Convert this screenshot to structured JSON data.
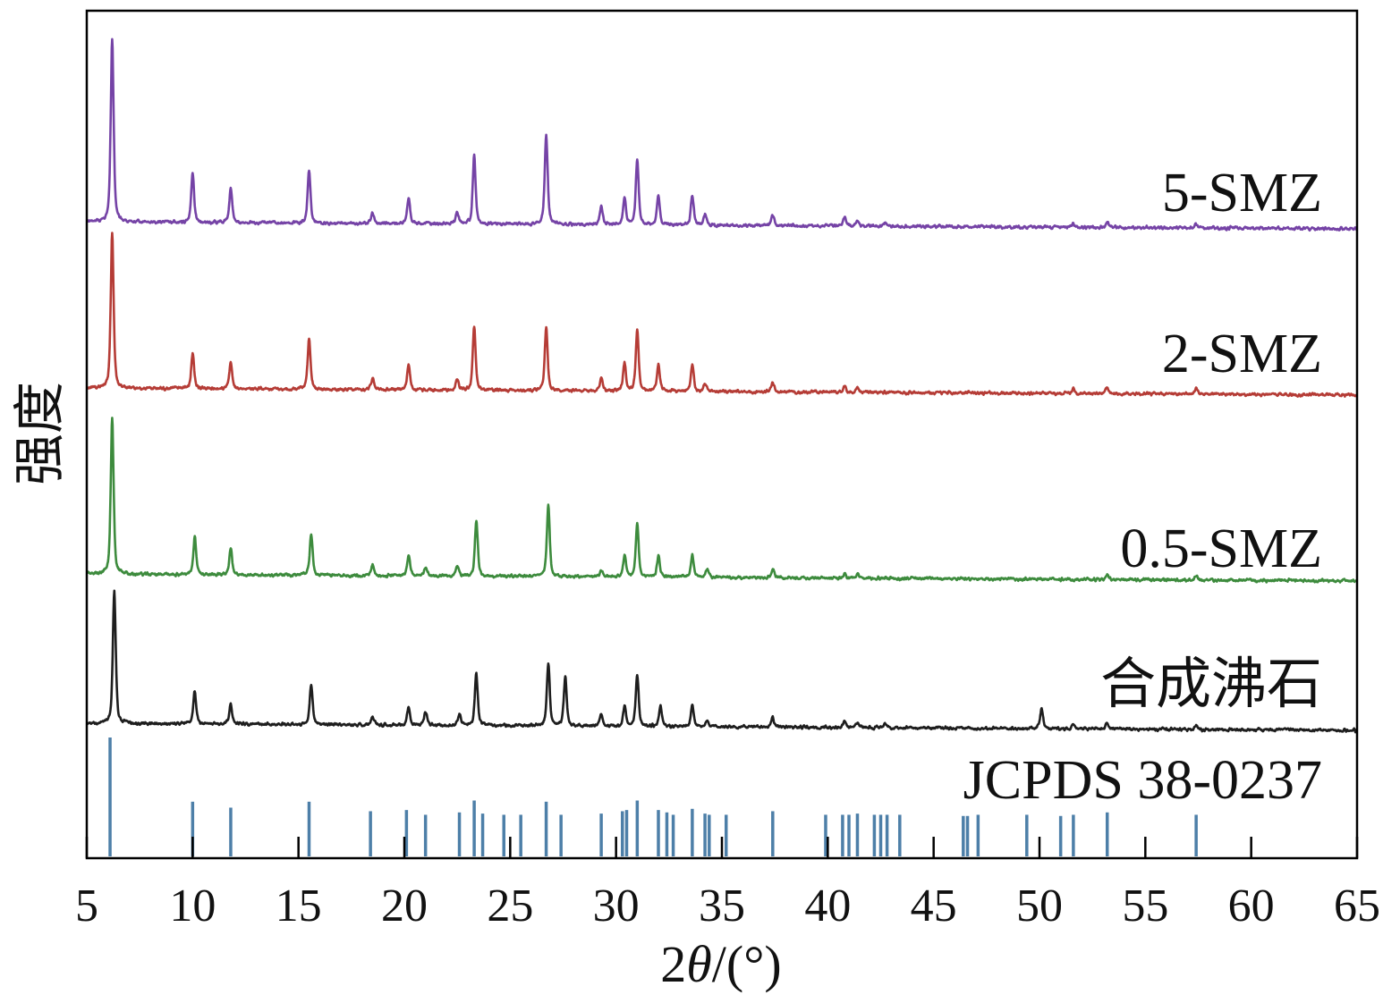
{
  "chart_data": {
    "type": "line",
    "title": "",
    "xlabel": "2θ/(°)",
    "ylabel": "强度",
    "xlim": [
      5,
      65
    ],
    "x_ticks": [
      5,
      10,
      15,
      20,
      25,
      30,
      35,
      40,
      45,
      50,
      55,
      60,
      65
    ],
    "y_ticks_shown": false,
    "grid": false,
    "stacked": true,
    "series": [
      {
        "name": "5-SMZ",
        "color": "#7543a6",
        "peaks": [
          [
            6.2,
            100
          ],
          [
            10.0,
            27
          ],
          [
            11.8,
            19
          ],
          [
            15.5,
            29
          ],
          [
            18.5,
            6
          ],
          [
            20.2,
            14
          ],
          [
            22.5,
            6
          ],
          [
            23.3,
            37
          ],
          [
            26.7,
            49
          ],
          [
            29.3,
            10
          ],
          [
            30.4,
            14
          ],
          [
            31.0,
            36
          ],
          [
            32.0,
            16
          ],
          [
            33.6,
            16
          ],
          [
            34.2,
            6
          ],
          [
            37.4,
            6
          ],
          [
            40.8,
            5
          ],
          [
            41.4,
            3
          ],
          [
            42.7,
            2
          ],
          [
            51.6,
            2
          ],
          [
            53.2,
            3
          ],
          [
            57.4,
            2
          ]
        ]
      },
      {
        "name": "2-SMZ",
        "color": "#b53c36",
        "peaks": [
          [
            6.2,
            100
          ],
          [
            10.0,
            23
          ],
          [
            11.8,
            17
          ],
          [
            15.5,
            33
          ],
          [
            18.5,
            8
          ],
          [
            20.2,
            16
          ],
          [
            22.5,
            7
          ],
          [
            23.3,
            42
          ],
          [
            26.7,
            41
          ],
          [
            29.3,
            8
          ],
          [
            30.4,
            18
          ],
          [
            31.0,
            40
          ],
          [
            32.0,
            17
          ],
          [
            33.6,
            17
          ],
          [
            34.2,
            5
          ],
          [
            37.4,
            6
          ],
          [
            40.8,
            4
          ],
          [
            41.4,
            3
          ],
          [
            51.6,
            3
          ],
          [
            53.2,
            4
          ],
          [
            57.4,
            4
          ]
        ]
      },
      {
        "name": "0.5-SMZ",
        "color": "#3d8b3d",
        "peaks": [
          [
            6.2,
            100
          ],
          [
            10.1,
            24
          ],
          [
            11.8,
            17
          ],
          [
            15.6,
            26
          ],
          [
            18.5,
            7
          ],
          [
            20.2,
            13
          ],
          [
            21.0,
            6
          ],
          [
            22.5,
            6
          ],
          [
            23.4,
            36
          ],
          [
            26.8,
            46
          ],
          [
            29.3,
            4
          ],
          [
            30.4,
            14
          ],
          [
            31.0,
            34
          ],
          [
            32.0,
            14
          ],
          [
            33.6,
            14
          ],
          [
            34.3,
            5
          ],
          [
            37.4,
            6
          ],
          [
            40.8,
            3
          ],
          [
            41.4,
            3
          ],
          [
            53.2,
            3
          ],
          [
            57.4,
            3
          ]
        ]
      },
      {
        "name": "合成沸石",
        "color": "#1e1e1e",
        "peaks": [
          [
            6.3,
            100
          ],
          [
            10.1,
            25
          ],
          [
            11.8,
            15
          ],
          [
            15.6,
            30
          ],
          [
            18.5,
            7
          ],
          [
            20.2,
            14
          ],
          [
            21.0,
            10
          ],
          [
            22.6,
            9
          ],
          [
            23.4,
            39
          ],
          [
            26.8,
            47
          ],
          [
            27.6,
            37
          ],
          [
            29.3,
            9
          ],
          [
            30.4,
            15
          ],
          [
            31.0,
            39
          ],
          [
            32.1,
            15
          ],
          [
            33.6,
            16
          ],
          [
            34.3,
            5
          ],
          [
            37.4,
            7
          ],
          [
            40.8,
            5
          ],
          [
            41.4,
            4
          ],
          [
            42.7,
            3
          ],
          [
            50.1,
            15
          ],
          [
            51.6,
            3
          ],
          [
            53.2,
            4
          ],
          [
            57.4,
            3
          ]
        ]
      }
    ],
    "reference": {
      "name": "JCPDS 38-0237",
      "color": "#4d7fa8",
      "lines": [
        [
          6.1,
          100
        ],
        [
          10.0,
          46
        ],
        [
          11.8,
          41
        ],
        [
          15.5,
          46
        ],
        [
          18.4,
          38
        ],
        [
          20.1,
          39
        ],
        [
          21.0,
          35
        ],
        [
          22.6,
          37
        ],
        [
          23.3,
          47
        ],
        [
          23.7,
          36
        ],
        [
          24.7,
          35
        ],
        [
          25.5,
          35
        ],
        [
          26.7,
          46
        ],
        [
          27.4,
          35
        ],
        [
          29.3,
          36
        ],
        [
          30.3,
          38
        ],
        [
          30.5,
          39
        ],
        [
          31.0,
          47
        ],
        [
          32.0,
          39
        ],
        [
          32.4,
          37
        ],
        [
          32.7,
          35
        ],
        [
          33.6,
          40
        ],
        [
          34.2,
          36
        ],
        [
          34.4,
          35
        ],
        [
          35.2,
          35
        ],
        [
          37.4,
          38
        ],
        [
          39.9,
          35
        ],
        [
          40.7,
          35
        ],
        [
          41.0,
          35
        ],
        [
          41.4,
          36
        ],
        [
          42.2,
          35
        ],
        [
          42.5,
          35
        ],
        [
          42.8,
          35
        ],
        [
          43.4,
          35
        ],
        [
          46.4,
          34
        ],
        [
          46.6,
          34
        ],
        [
          47.1,
          35
        ],
        [
          49.4,
          35
        ],
        [
          51.0,
          34
        ],
        [
          51.6,
          35
        ],
        [
          53.2,
          37
        ],
        [
          57.4,
          35
        ]
      ]
    }
  }
}
